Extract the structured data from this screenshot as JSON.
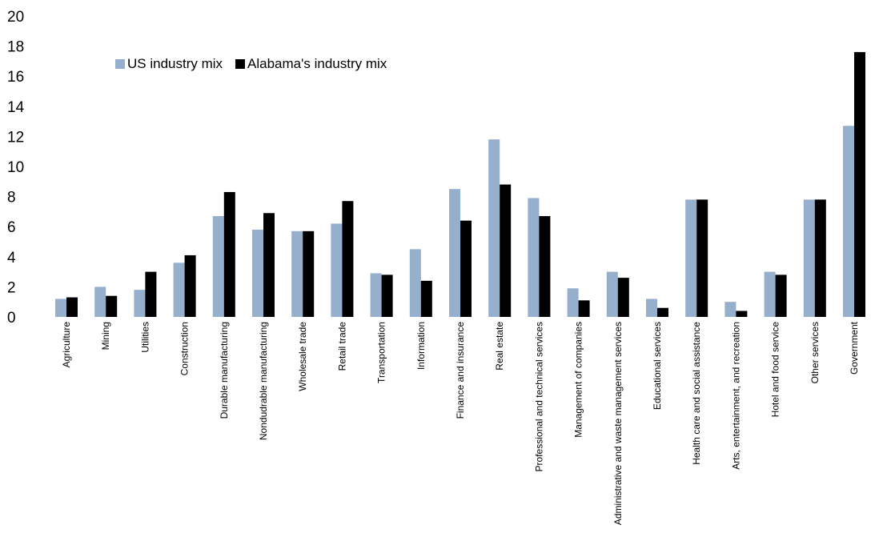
{
  "chart_data": {
    "type": "bar",
    "ylim": [
      0,
      20
    ],
    "yticks": [
      0,
      2,
      4,
      6,
      8,
      10,
      12,
      14,
      16,
      18,
      20
    ],
    "grid": false,
    "legend_position": "top-left",
    "categories": [
      "Agriculture",
      "Mining",
      "Utilities",
      "Construction",
      "Durable manufacturing",
      "Nondudrable manufacturing",
      "Wholesale trade",
      "Retail trade",
      "Transportation",
      "Information",
      "Finance and insurance",
      "Real estate",
      "Professional and technical services",
      "Management of companies",
      "Administrative and waste management services",
      "Educational services",
      "Health care and social assistance",
      "Arts, entertainment, and recreation",
      "Hotel and food service",
      "Other services",
      "Government"
    ],
    "series": [
      {
        "name": "US industry mix",
        "color": "#95afcc",
        "values": [
          1.2,
          2.0,
          1.8,
          3.6,
          6.7,
          5.8,
          5.7,
          6.2,
          2.9,
          4.5,
          8.5,
          11.8,
          7.9,
          1.9,
          3.0,
          1.2,
          7.8,
          1.0,
          3.0,
          7.8,
          12.7
        ]
      },
      {
        "name": "Alabama's industry mix",
        "color": "#000000",
        "values": [
          1.3,
          1.4,
          3.0,
          4.1,
          8.3,
          6.9,
          5.7,
          7.7,
          2.8,
          2.4,
          6.4,
          8.8,
          6.7,
          1.1,
          2.6,
          0.6,
          7.8,
          0.4,
          2.8,
          7.8,
          17.6
        ]
      }
    ]
  }
}
